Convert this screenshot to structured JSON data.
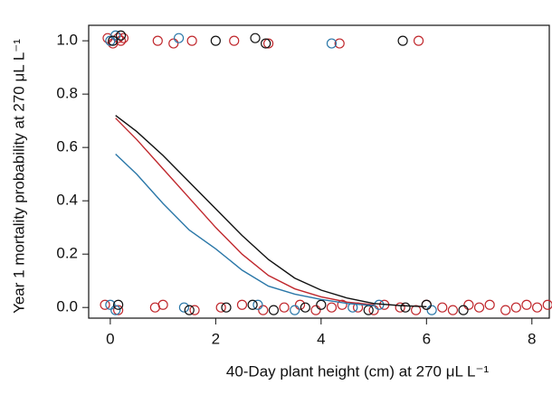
{
  "chart_data": {
    "type": "scatter",
    "xlabel": "40-Day plant height (cm) at 270 μL L⁻¹",
    "ylabel": "Year 1 mortality probability at 270 μL L⁻¹",
    "xlim": [
      -0.41,
      8.33
    ],
    "ylim": [
      -0.04,
      1.058
    ],
    "xticks": [
      0,
      2,
      4,
      6,
      8
    ],
    "yticks": [
      {
        "value": 0,
        "label": "0.0"
      },
      0.2,
      0.4,
      0.6,
      0.8,
      {
        "value": 1,
        "label": "1.0"
      }
    ],
    "series": [
      {
        "mode": "markers",
        "color": "#c0282d",
        "x": [
          -0.05,
          0.05,
          0.15,
          0.2,
          0.25,
          0.9,
          1.2,
          1.55,
          2.35,
          3.0,
          4.35,
          5.85,
          -0.1,
          0.15,
          0.85,
          1.0,
          1.6,
          2.1,
          2.5,
          2.9,
          3.3,
          3.6,
          3.9,
          4.2,
          4.4,
          4.7,
          5.0,
          5.2,
          5.5,
          5.8,
          6.0,
          6.3,
          6.5,
          6.8,
          7.0,
          7.2,
          7.5,
          7.7,
          7.9,
          8.1,
          8.3
        ],
        "values": [
          1.01,
          0.99,
          1.01,
          1.0,
          1.01,
          1.0,
          0.99,
          1.0,
          1.0,
          0.99,
          0.99,
          1.0,
          0.01,
          -0.01,
          0.0,
          0.01,
          -0.01,
          0.0,
          0.01,
          -0.01,
          0.0,
          0.01,
          -0.01,
          0.0,
          0.01,
          0.0,
          -0.01,
          0.01,
          0.0,
          -0.01,
          0.01,
          0.0,
          -0.01,
          0.01,
          0.0,
          0.01,
          -0.01,
          0.0,
          0.01,
          0.0,
          0.01
        ]
      },
      {
        "mode": "markers",
        "color": "#2a77a8",
        "x": [
          0.0,
          0.1,
          1.3,
          4.2,
          0.0,
          0.1,
          1.4,
          2.8,
          3.5,
          4.6,
          5.1,
          6.1
        ],
        "values": [
          1.0,
          1.02,
          1.01,
          0.99,
          0.01,
          -0.01,
          0.0,
          0.01,
          -0.01,
          0.0,
          0.01,
          -0.01
        ]
      },
      {
        "mode": "markers",
        "color": "#111111",
        "x": [
          0.05,
          0.2,
          2.0,
          2.75,
          2.95,
          5.55,
          0.15,
          1.5,
          2.2,
          2.7,
          3.1,
          3.7,
          4.0,
          4.9,
          5.6,
          6.0,
          6.7
        ],
        "values": [
          1.0,
          1.02,
          1.0,
          1.01,
          0.99,
          1.0,
          0.01,
          -0.01,
          0.0,
          0.01,
          -0.01,
          0.0,
          0.01,
          -0.01,
          0.0,
          0.01,
          -0.01
        ]
      },
      {
        "mode": "lines",
        "color": "#111111",
        "x": [
          0.1,
          0.5,
          1,
          1.5,
          2,
          2.5,
          3,
          3.5,
          4,
          4.5,
          5,
          5.5,
          6
        ],
        "values": [
          0.72,
          0.66,
          0.57,
          0.47,
          0.37,
          0.27,
          0.18,
          0.11,
          0.065,
          0.035,
          0.015,
          0.007,
          0.003
        ]
      },
      {
        "mode": "lines",
        "color": "#c0282d",
        "x": [
          0.1,
          0.5,
          1,
          1.5,
          2,
          2.5,
          3,
          3.5,
          4,
          4.5,
          5
        ],
        "values": [
          0.71,
          0.63,
          0.52,
          0.41,
          0.3,
          0.2,
          0.12,
          0.07,
          0.04,
          0.02,
          0.01
        ]
      },
      {
        "mode": "lines",
        "color": "#2a77a8",
        "x": [
          0.1,
          0.5,
          1,
          1.5,
          2,
          2.5,
          3,
          3.5,
          4,
          4.5,
          5
        ],
        "values": [
          0.575,
          0.5,
          0.39,
          0.29,
          0.22,
          0.14,
          0.08,
          0.05,
          0.03,
          0.015,
          0.007
        ]
      }
    ]
  }
}
